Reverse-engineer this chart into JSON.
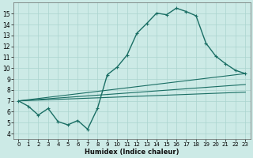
{
  "xlabel": "Humidex (Indice chaleur)",
  "background_color": "#cceae6",
  "grid_color": "#aad4cf",
  "line_color": "#1a6e64",
  "xlim": [
    -0.5,
    23.5
  ],
  "ylim": [
    3.5,
    16.0
  ],
  "yticks": [
    4,
    5,
    6,
    7,
    8,
    9,
    10,
    11,
    12,
    13,
    14,
    15
  ],
  "xticks": [
    0,
    1,
    2,
    3,
    4,
    5,
    6,
    7,
    8,
    9,
    10,
    11,
    12,
    13,
    14,
    15,
    16,
    17,
    18,
    19,
    20,
    21,
    22,
    23
  ],
  "main_x": [
    0,
    1,
    2,
    3,
    4,
    5,
    6,
    7,
    8,
    9,
    10,
    11,
    12,
    13,
    14,
    15,
    16,
    17,
    18,
    19,
    20,
    21,
    22,
    23
  ],
  "main_y": [
    7.0,
    6.5,
    5.7,
    6.3,
    5.1,
    4.8,
    5.2,
    4.4,
    6.3,
    9.4,
    10.1,
    11.2,
    13.2,
    14.1,
    15.05,
    14.9,
    15.5,
    15.2,
    14.8,
    12.3,
    11.1,
    10.4,
    9.8,
    9.5
  ],
  "line1_x": [
    0,
    23
  ],
  "line1_y": [
    7.0,
    9.5
  ],
  "line2_x": [
    0,
    23
  ],
  "line2_y": [
    7.0,
    8.5
  ],
  "line3_x": [
    0,
    23
  ],
  "line3_y": [
    7.0,
    7.8
  ]
}
